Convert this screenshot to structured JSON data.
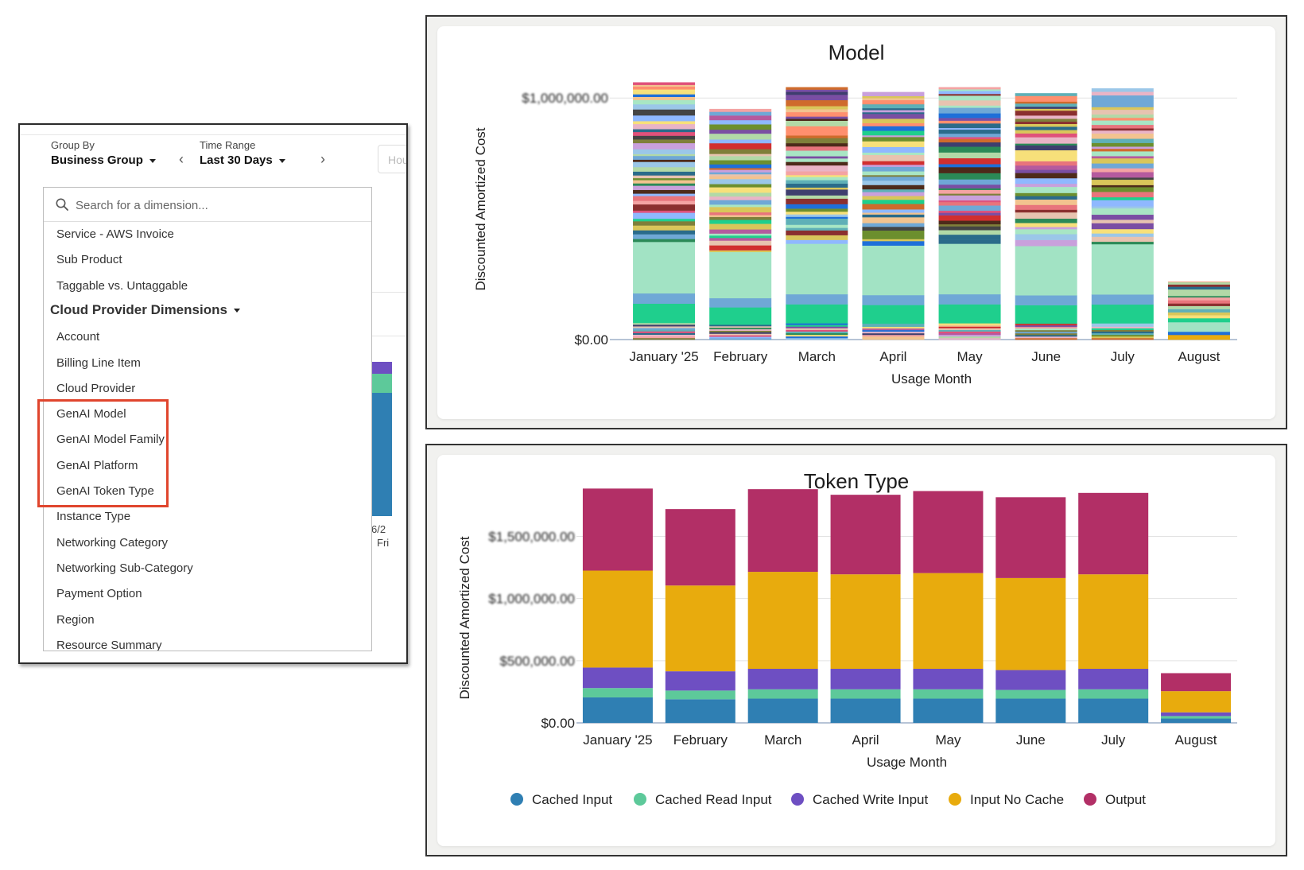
{
  "left_panel": {
    "group_by": {
      "label": "Group By",
      "value": "Business Group"
    },
    "time_range": {
      "label": "Time Range",
      "value": "Last 30 Days"
    },
    "hour_input_placeholder": "Hou",
    "background_date": {
      "line1": "6/2",
      "line2": "Fri"
    },
    "search": {
      "placeholder": "Search for a dimension..."
    },
    "dimensions_top": [
      "Service - AWS Invoice",
      "Sub Product",
      "Taggable vs. Untaggable"
    ],
    "group_header": "Cloud Provider Dimensions",
    "dimensions_group": [
      "Account",
      "Billing Line Item",
      "Cloud Provider",
      "GenAI Model",
      "GenAI Model Family",
      "GenAI Platform",
      "GenAI Token Type",
      "Instance Type",
      "Networking Category",
      "Networking Sub-Category",
      "Payment Option",
      "Region",
      "Resource Summary"
    ],
    "highlight_color": "#e0452d",
    "highlighted_items": [
      "GenAI Model",
      "GenAI Model Family",
      "GenAI Platform",
      "GenAI Token Type"
    ]
  },
  "chart_data": [
    {
      "type": "bar",
      "stacked": true,
      "title": "Model",
      "xlabel": "Usage Month",
      "ylabel": "Discounted Amortized Cost",
      "categories": [
        "January '25",
        "February",
        "March",
        "April",
        "May",
        "June",
        "July",
        "August"
      ],
      "y_ticks": [
        "$0.00",
        "$1,000,000.00"
      ],
      "y_tick_values": [
        0,
        1000000
      ],
      "ylim": [
        0,
        1060000
      ],
      "totals": [
        1065000,
        955000,
        1045000,
        1025000,
        1045000,
        1020000,
        1040000,
        240000
      ],
      "series_count_note": "many stacked model segments",
      "grid": true,
      "legend": "none"
    },
    {
      "type": "bar",
      "stacked": true,
      "title": "Token Type",
      "xlabel": "Usage Month",
      "ylabel": "Discounted Amortized Cost",
      "categories": [
        "January '25",
        "February",
        "March",
        "April",
        "May",
        "June",
        "July",
        "August"
      ],
      "y_ticks": [
        "$0.00",
        "$500,000.00",
        "$1,000,000.00",
        "$1,500,000.00"
      ],
      "y_tick_values": [
        0,
        500000,
        1000000,
        1500000
      ],
      "ylim": [
        0,
        1900000
      ],
      "grid": true,
      "legend": "bottom",
      "series": [
        {
          "name": "Cached Input",
          "color": "#2f7fb3",
          "values": [
            205000,
            190000,
            195000,
            195000,
            195000,
            195000,
            195000,
            35000
          ]
        },
        {
          "name": "Cached Read Input",
          "color": "#5dc99a",
          "values": [
            75000,
            70000,
            75000,
            75000,
            75000,
            70000,
            75000,
            20000
          ]
        },
        {
          "name": "Cached Write Input",
          "color": "#6e4fc2",
          "values": [
            165000,
            155000,
            165000,
            165000,
            165000,
            160000,
            165000,
            30000
          ]
        },
        {
          "name": "Input No Cache",
          "color": "#e8ab0d",
          "values": [
            780000,
            690000,
            780000,
            760000,
            770000,
            740000,
            760000,
            170000
          ]
        },
        {
          "name": "Output",
          "color": "#b22f66",
          "values": [
            660000,
            615000,
            665000,
            640000,
            660000,
            650000,
            655000,
            145000
          ]
        }
      ]
    }
  ]
}
